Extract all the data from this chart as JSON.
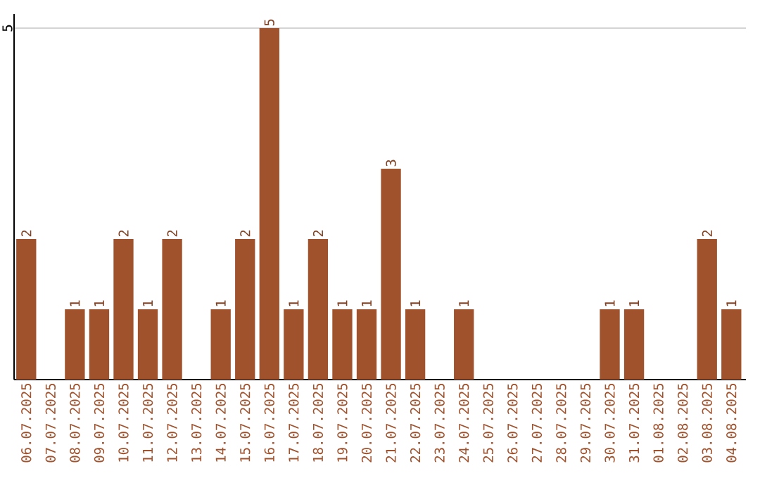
{
  "chart_data": {
    "type": "bar",
    "categories": [
      "06.07.2025",
      "07.07.2025",
      "08.07.2025",
      "09.07.2025",
      "10.07.2025",
      "11.07.2025",
      "12.07.2025",
      "13.07.2025",
      "14.07.2025",
      "15.07.2025",
      "16.07.2025",
      "17.07.2025",
      "18.07.2025",
      "19.07.2025",
      "20.07.2025",
      "21.07.2025",
      "22.07.2025",
      "23.07.2025",
      "24.07.2025",
      "25.07.2025",
      "26.07.2025",
      "27.07.2025",
      "28.07.2025",
      "29.07.2025",
      "30.07.2025",
      "31.07.2025",
      "01.08.2025",
      "02.08.2025",
      "03.08.2025",
      "04.08.2025"
    ],
    "values": [
      2,
      0,
      1,
      1,
      2,
      1,
      2,
      0,
      1,
      2,
      5,
      1,
      2,
      1,
      1,
      3,
      1,
      0,
      1,
      0,
      0,
      0,
      0,
      0,
      1,
      1,
      0,
      0,
      2,
      1
    ],
    "value_labels": [
      "2",
      null,
      "1",
      "1",
      "2",
      "1",
      "2",
      null,
      "1",
      "2",
      "5",
      "1",
      "2",
      "1",
      "1",
      "3",
      "1",
      null,
      "1",
      null,
      null,
      null,
      null,
      null,
      "1",
      "1",
      null,
      null,
      "2",
      "1"
    ],
    "color": "#a0522d",
    "ylim": [
      0,
      5.2
    ],
    "yticks": [
      5
    ],
    "grid": "y"
  }
}
